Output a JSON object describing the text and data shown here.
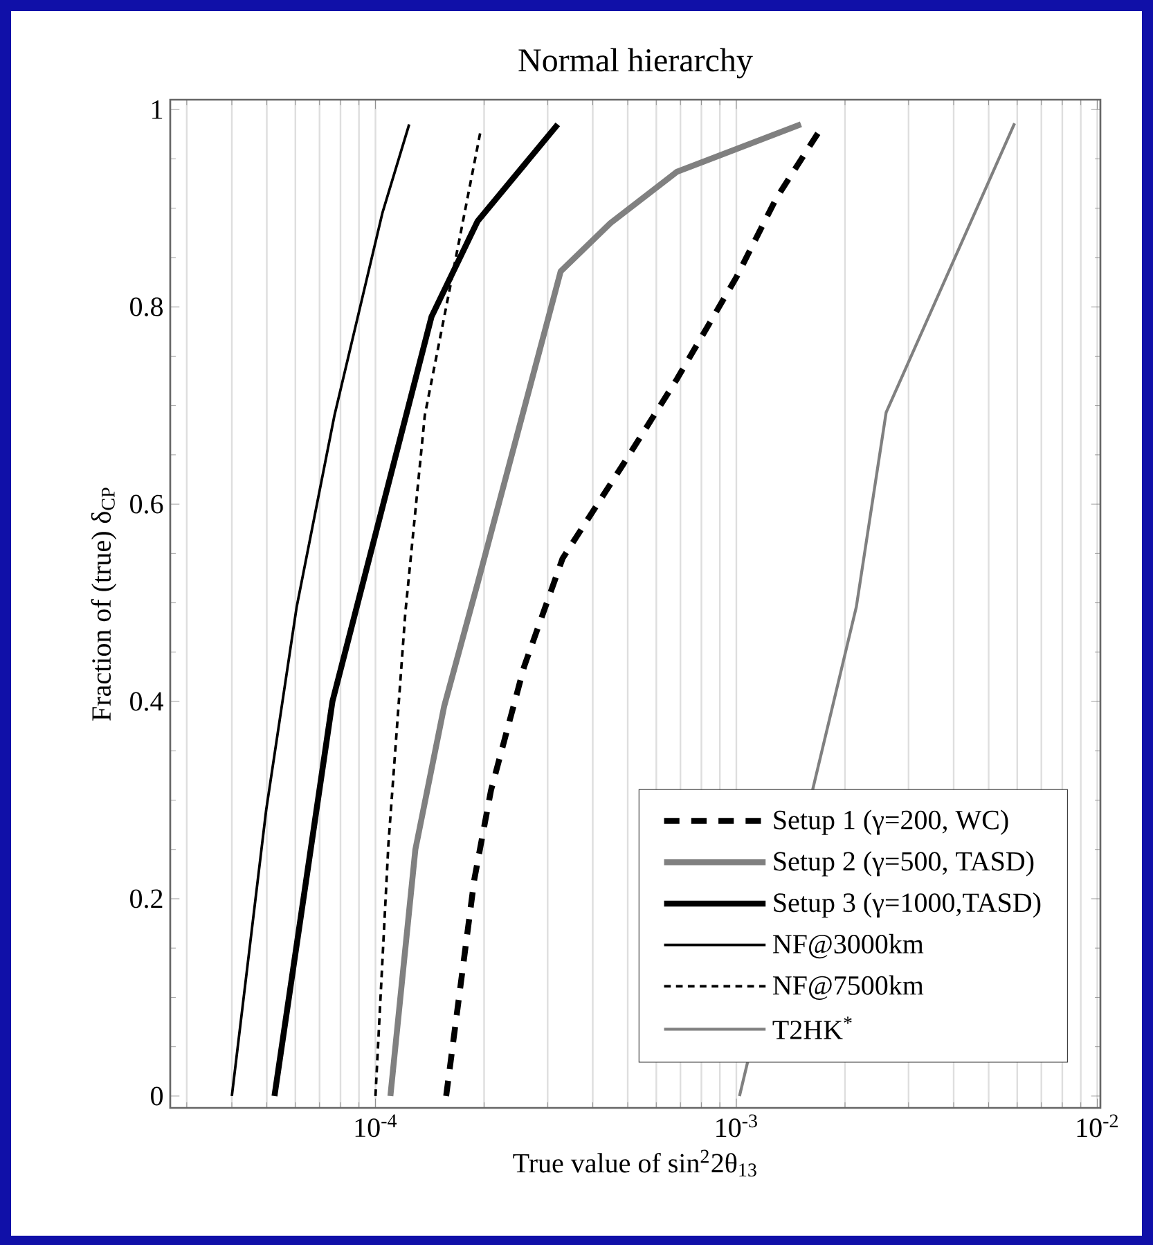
{
  "chart_data": {
    "type": "line",
    "title": "Normal hierarchy",
    "xlabel": "True value of sin$^{2}$2θ$_{13}$",
    "ylabel": "Fraction of (true) δ$_{CP}$",
    "log": "x",
    "grid": "x",
    "legend": "bottom right",
    "marker": "none",
    "xlim": [
      2.7e-05,
      0.0102
    ],
    "ylim": [
      -0.012,
      1.01
    ],
    "xticks": [
      {
        "value": 0.0001,
        "label": "10$^{-4}$"
      },
      {
        "value": 0.001,
        "label": "10$^{-3}$"
      },
      {
        "value": 0.01,
        "label": "10$^{-2}$"
      }
    ],
    "yticks": [
      0,
      0.2,
      0.4,
      0.6,
      0.8,
      1
    ],
    "series": [
      {
        "name": "Setup 1 (γ=200, WC)",
        "color": "#000000",
        "line_style": "dashed",
        "x": [
          0.000157,
          0.000188,
          0.000209,
          0.000258,
          0.00033,
          0.000485,
          0.000685,
          0.001,
          0.00129,
          0.00171
        ],
        "values": [
          0,
          0.22,
          0.31,
          0.435,
          0.545,
          0.64,
          0.727,
          0.83,
          0.91,
          0.98
        ]
      },
      {
        "name": "Setup 2 (γ=500, TASD)",
        "color": "#808080",
        "line_style": "solid",
        "x": [
          0.00011,
          0.000129,
          0.000155,
          0.000192,
          0.000326,
          0.000448,
          0.000685,
          0.00151
        ],
        "values": [
          0,
          0.25,
          0.395,
          0.52,
          0.836,
          0.885,
          0.937,
          0.985
        ]
      },
      {
        "name": "Setup 3 (γ=1000,TASD)",
        "color": "#000000",
        "line_style": "solid",
        "x": [
          5.25e-05,
          7.6e-05,
          0.000143,
          0.000192,
          0.00032
        ],
        "values": [
          0,
          0.4,
          0.79,
          0.887,
          0.985
        ]
      },
      {
        "name": "NF@3000km",
        "color": "#000000",
        "line_style": "solid",
        "x": [
          4e-05,
          4.98e-05,
          6.05e-05,
          7.7e-05,
          0.0001045,
          0.000124
        ],
        "values": [
          0,
          0.29,
          0.496,
          0.69,
          0.895,
          0.985
        ]
      },
      {
        "name": "NF@7500km",
        "color": "#000000",
        "line_style": "dashed",
        "x": [
          0.0001,
          0.0001086,
          0.000121,
          0.000137,
          0.000162,
          0.000196
        ],
        "values": [
          0,
          0.255,
          0.49,
          0.69,
          0.825,
          0.98
        ]
      },
      {
        "name": "T2HK$^{*}$",
        "color": "#808080",
        "line_style": "solid",
        "x": [
          0.00102,
          0.00215,
          0.0026,
          0.0059
        ],
        "values": [
          0,
          0.496,
          0.693,
          0.986
        ]
      }
    ]
  }
}
